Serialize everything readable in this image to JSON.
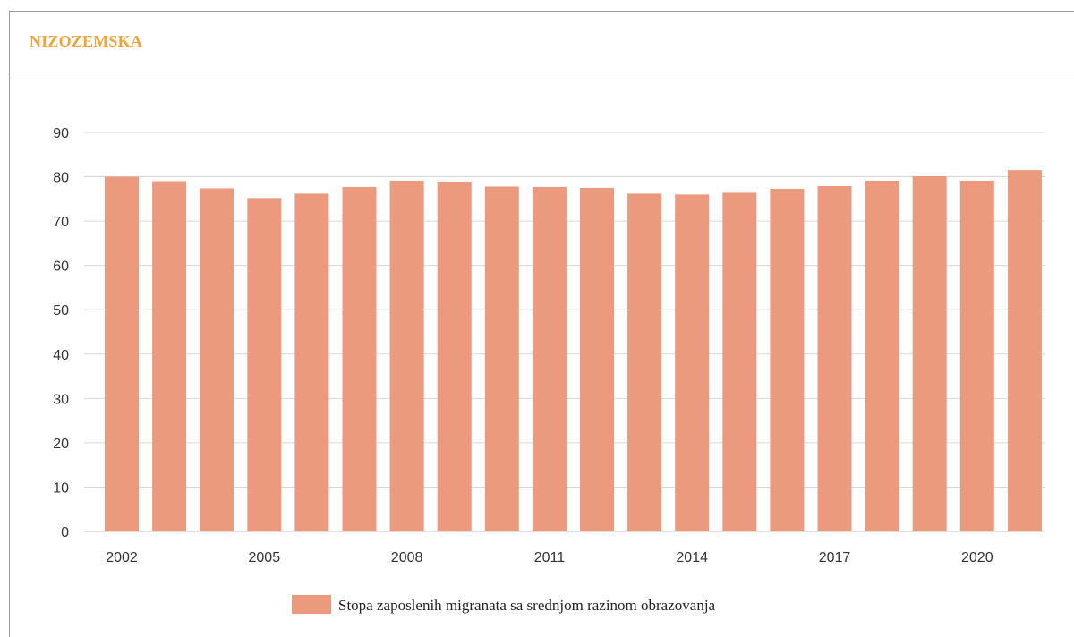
{
  "panel": {
    "title": "NIZOZEMSKA"
  },
  "chart_data": {
    "type": "bar",
    "title": "NIZOZEMSKA",
    "xlabel": "",
    "ylabel": "",
    "ylim": [
      0,
      90
    ],
    "yticks": [
      0,
      10,
      20,
      30,
      40,
      50,
      60,
      70,
      80,
      90
    ],
    "grid": true,
    "legend_position": "bottom",
    "categories": [
      "2002",
      "2003",
      "2004",
      "2005",
      "2006",
      "2007",
      "2008",
      "2009",
      "2010",
      "2011",
      "2012",
      "2013",
      "2014",
      "2015",
      "2016",
      "2017",
      "2018",
      "2019",
      "2020",
      "2021"
    ],
    "x_tick_labels": [
      "2002",
      "2005",
      "2008",
      "2011",
      "2014",
      "2017",
      "2020"
    ],
    "series": [
      {
        "name": "Stopa zaposlenih migranata sa srednjom razinom obrazovanja",
        "color": "#ec9a7d",
        "values": [
          80.0,
          79.0,
          77.4,
          75.2,
          76.2,
          77.7,
          79.1,
          78.9,
          77.8,
          77.7,
          77.5,
          76.2,
          76.0,
          76.4,
          77.3,
          77.9,
          79.1,
          80.1,
          79.1,
          81.5
        ]
      }
    ]
  }
}
